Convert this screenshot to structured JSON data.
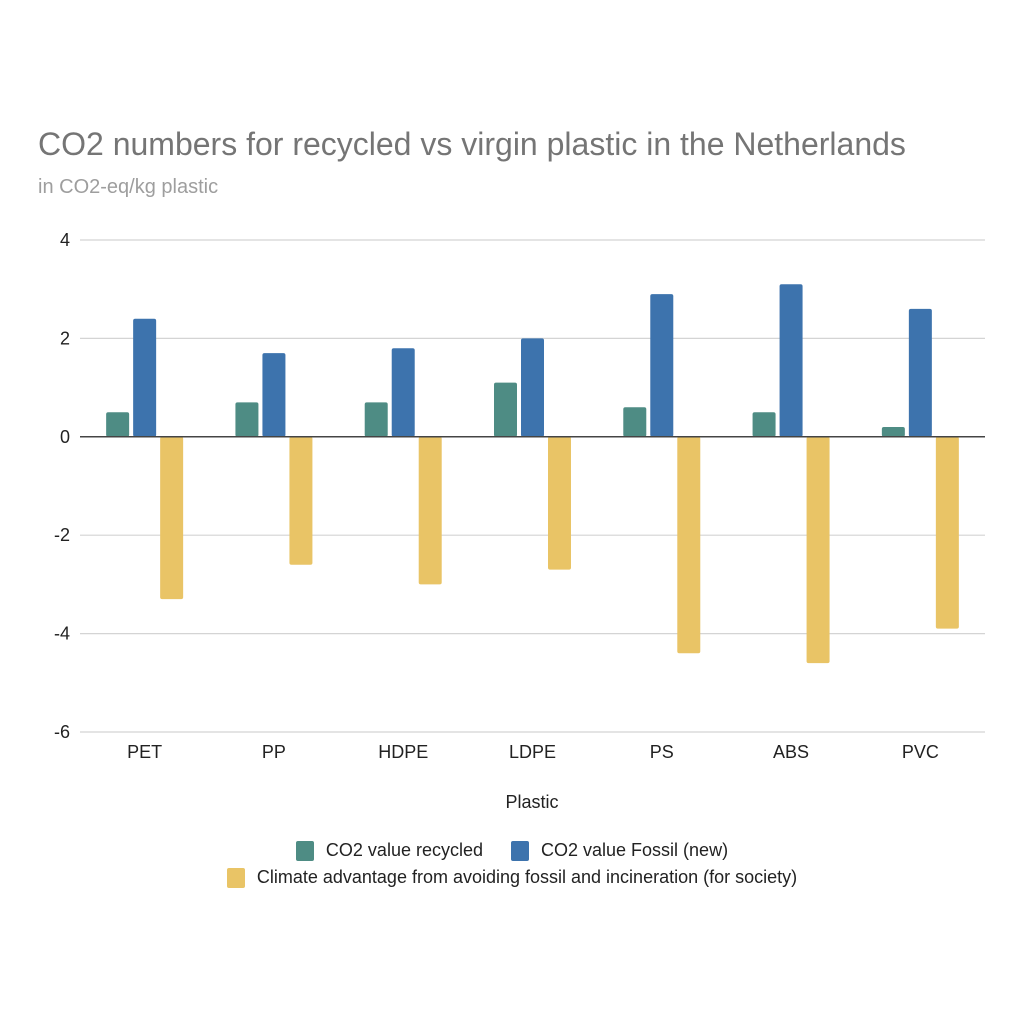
{
  "chart_data": {
    "type": "bar",
    "title": "CO2 numbers for recycled vs virgin plastic in the Netherlands",
    "subtitle": "in CO2-eq/kg plastic",
    "xlabel": "Plastic",
    "ylabel": "",
    "categories": [
      "PET",
      "PP",
      "HDPE",
      "LDPE",
      "PS",
      "ABS",
      "PVC"
    ],
    "ylim": [
      -6,
      4
    ],
    "yticks": [
      4,
      2,
      0,
      -2,
      -4,
      -6
    ],
    "ytick_labels": [
      "4",
      "2",
      "0",
      "-2",
      "-4",
      "-6"
    ],
    "grid": true,
    "legend_position": "bottom",
    "series": [
      {
        "name": "CO2 value recycled",
        "color": "#4e8c84",
        "values": [
          0.5,
          0.7,
          0.7,
          1.1,
          0.6,
          0.5,
          0.2
        ]
      },
      {
        "name": "CO2 value Fossil (new)",
        "color": "#3d73ad",
        "values": [
          2.4,
          1.7,
          1.8,
          2.0,
          2.9,
          3.1,
          2.6
        ]
      },
      {
        "name": "Climate advantage from avoiding fossil and incineration (for society)",
        "color": "#e9c466",
        "values": [
          -3.3,
          -2.6,
          -3.0,
          -2.7,
          -4.4,
          -4.6,
          -3.9
        ]
      }
    ]
  }
}
